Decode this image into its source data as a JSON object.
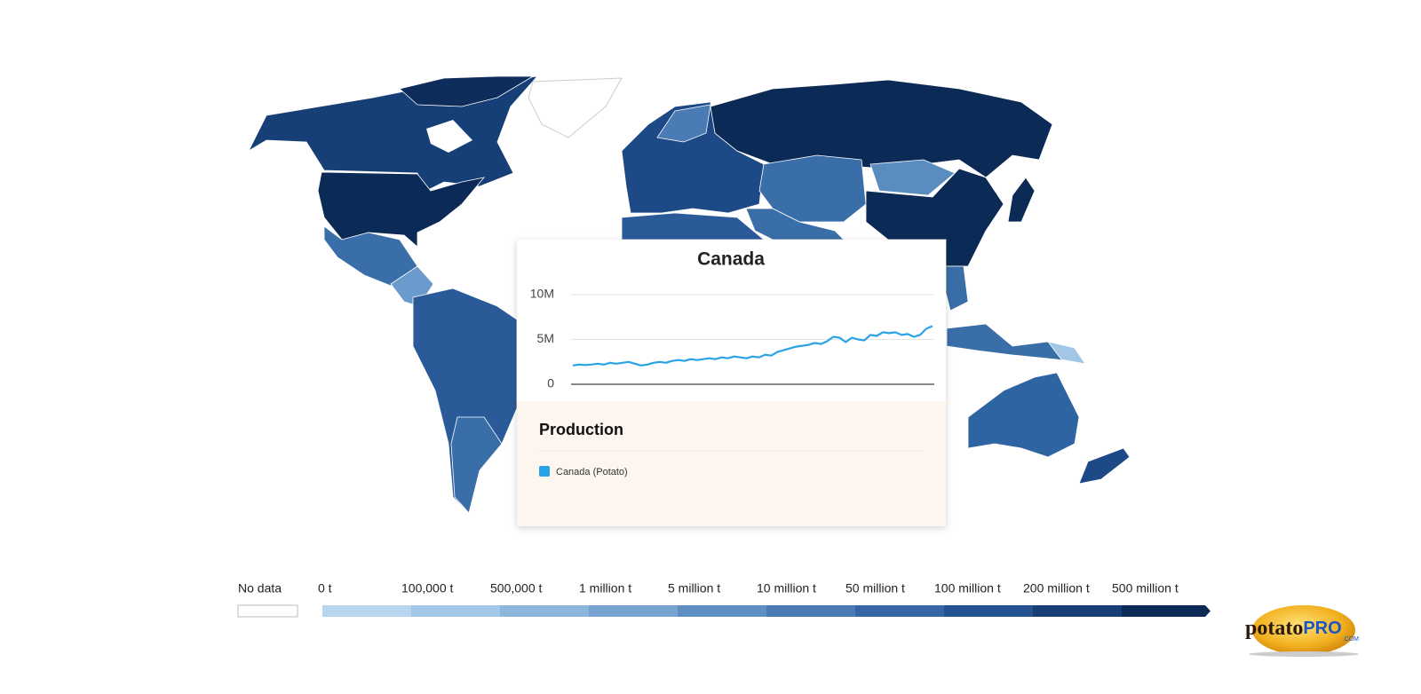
{
  "chart_data": {
    "type": "line",
    "title": "Canada",
    "legend_title": "Production",
    "ylim": [
      0,
      10000000
    ],
    "yticks": [
      0,
      {
        "value": 5000000,
        "label": "5M"
      },
      {
        "value": 10000000,
        "label": "10M"
      }
    ],
    "series": [
      {
        "name": "Canada (Potato)",
        "color": "#29a3e6",
        "values": [
          2100000,
          2200000,
          2150000,
          2200000,
          2300000,
          2200000,
          2400000,
          2300000,
          2400000,
          2500000,
          2300000,
          2100000,
          2200000,
          2400000,
          2500000,
          2400000,
          2600000,
          2700000,
          2600000,
          2800000,
          2700000,
          2800000,
          2900000,
          2800000,
          3000000,
          2900000,
          3100000,
          3000000,
          2900000,
          3100000,
          3000000,
          3300000,
          3200000,
          3600000,
          3800000,
          4000000,
          4200000,
          4300000,
          4400000,
          4600000,
          4500000,
          4800000,
          5300000,
          5200000,
          4700000,
          5200000,
          5000000,
          4900000,
          5500000,
          5400000,
          5800000,
          5700000,
          5800000,
          5500000,
          5600000,
          5300000,
          5500000,
          6200000,
          6500000
        ]
      }
    ]
  },
  "map_legend": {
    "no_data": "No data",
    "no_data_color": "#ffffff",
    "stops": [
      {
        "label": "0 t",
        "color": "#b6d5ee"
      },
      {
        "label": "100,000 t",
        "color": "#a2c6e6"
      },
      {
        "label": "500,000 t",
        "color": "#8db6dc"
      },
      {
        "label": "1 million t",
        "color": "#76a3d0"
      },
      {
        "label": "5 million t",
        "color": "#5f8fc2"
      },
      {
        "label": "10 million t",
        "color": "#4a7bb4"
      },
      {
        "label": "50 million t",
        "color": "#3667a4"
      },
      {
        "label": "100 million t",
        "color": "#245290"
      },
      {
        "label": "200 million t",
        "color": "#173f76"
      },
      {
        "label": "500 million t",
        "color": "#0c2a56"
      }
    ]
  },
  "logo": {
    "name": "potato",
    "highlight": "PRO",
    "suffix": ".COM"
  }
}
